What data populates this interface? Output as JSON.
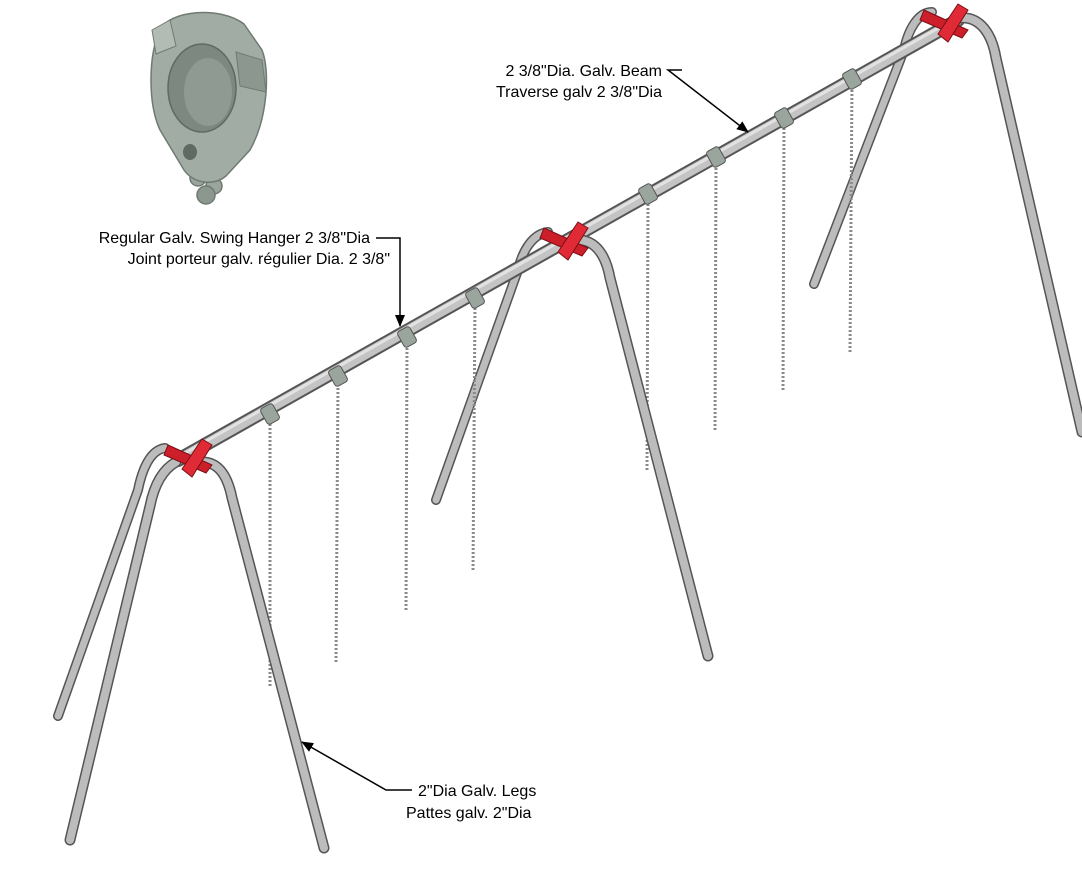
{
  "callouts": {
    "beam": {
      "line1": "2 3/8\"Dia. Galv. Beam",
      "line2": "Traverse galv 2 3/8\"Dia"
    },
    "hanger": {
      "line1": "Regular Galv. Swing Hanger 2 3/8\"Dia",
      "line2": "Joint porteur galv. régulier Dia. 2 3/8\""
    },
    "legs": {
      "line1": "2\"Dia Galv. Legs",
      "line2": "Pattes galv. 2\"Dia"
    }
  },
  "colors": {
    "galvanized_pipe": "#b8b8b8",
    "pipe_outline": "#555555",
    "fitting": "#cc1f2a",
    "hanger_body": "#9aa59d",
    "chain": "#8a8a8a",
    "leader": "#000000"
  }
}
